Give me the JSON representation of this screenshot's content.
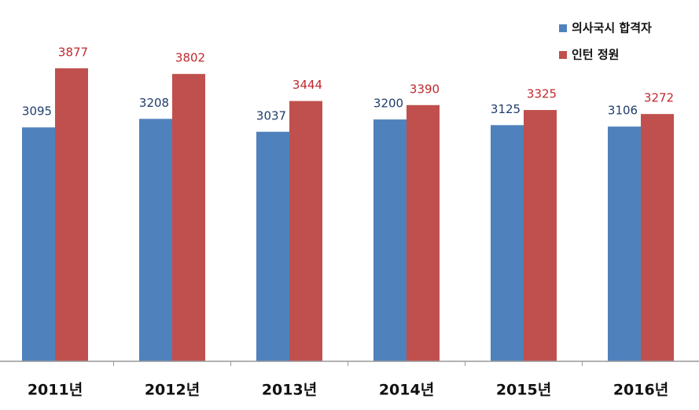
{
  "chart_data": {
    "type": "bar",
    "categories": [
      "2011년",
      "2012년",
      "2013년",
      "2014년",
      "2015년",
      "2016년"
    ],
    "series": [
      {
        "name": "의사국시 합격자",
        "color": "#4f81bd",
        "label_color": "#1f3d6b",
        "values": [
          3095,
          3208,
          3037,
          3200,
          3125,
          3106
        ]
      },
      {
        "name": "인턴 정원",
        "color": "#c0504d",
        "label_color": "#c0282d",
        "values": [
          3877,
          3802,
          3444,
          3390,
          3325,
          3272
        ]
      }
    ],
    "ylim": [
      0,
      4500
    ],
    "legend": "top-right"
  }
}
